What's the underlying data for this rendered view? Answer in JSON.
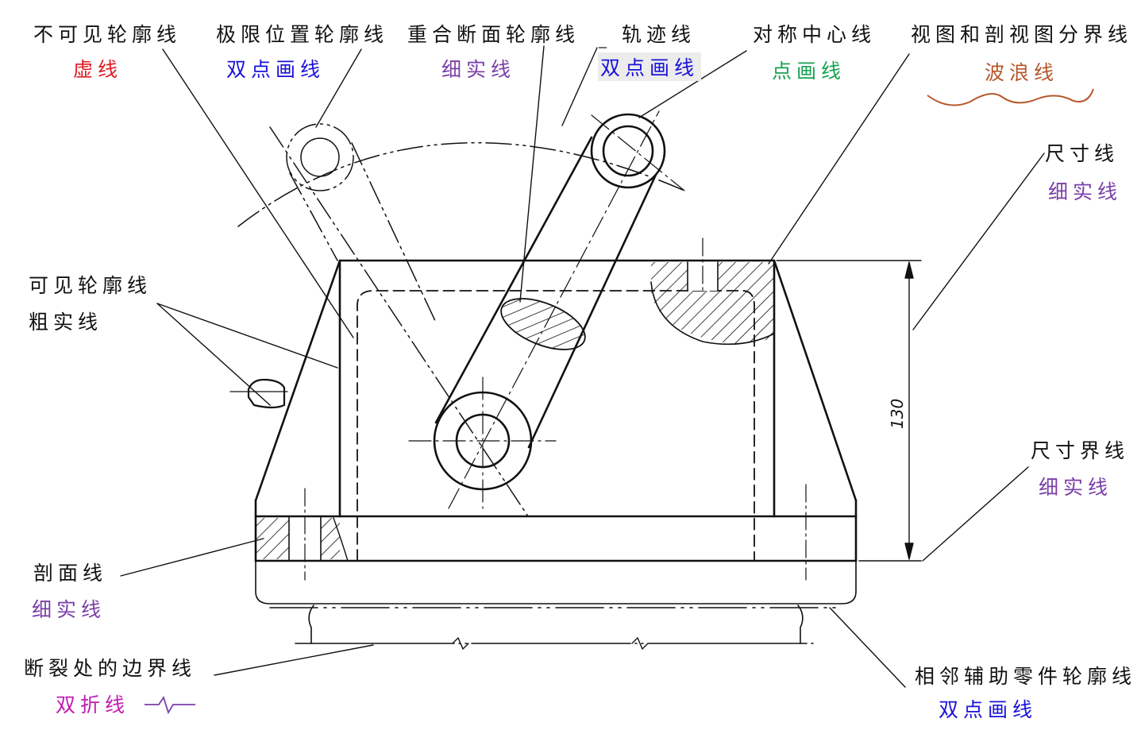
{
  "labels": {
    "invisible_outline": "不可见轮廓线",
    "invisible_outline_type": "虚线",
    "limit_position": "极限位置轮廓线",
    "limit_position_type": "双点画线",
    "coincident_section": "重合断面轮廓线",
    "coincident_section_type": "细实线",
    "trajectory": "轨迹线",
    "trajectory_type": "双点画线",
    "symmetry_center": "对称中心线",
    "symmetry_center_type": "点画线",
    "view_boundary": "视图和剖视图分界线",
    "view_boundary_type": "波浪线",
    "dimension_line": "尺寸线",
    "dimension_line_type": "细实线",
    "visible_outline": "可见轮廓线",
    "visible_outline_type": "粗实线",
    "extension_line": "尺寸界线",
    "extension_line_type": "细实线",
    "hatch_line": "剖面线",
    "hatch_line_type": "细实线",
    "break_boundary": "断裂处的边界线",
    "break_boundary_type": "双折线",
    "adjacent_part": "相邻辅助零件轮廓线",
    "adjacent_part_type": "双点画线"
  },
  "dimension": {
    "value": "130"
  },
  "colors": {
    "red": "#e01c24",
    "blue": "#1a12d8",
    "purple": "#7a3fa8",
    "green": "#16a350",
    "brown": "#b5582a",
    "magenta": "#c01cb0"
  }
}
